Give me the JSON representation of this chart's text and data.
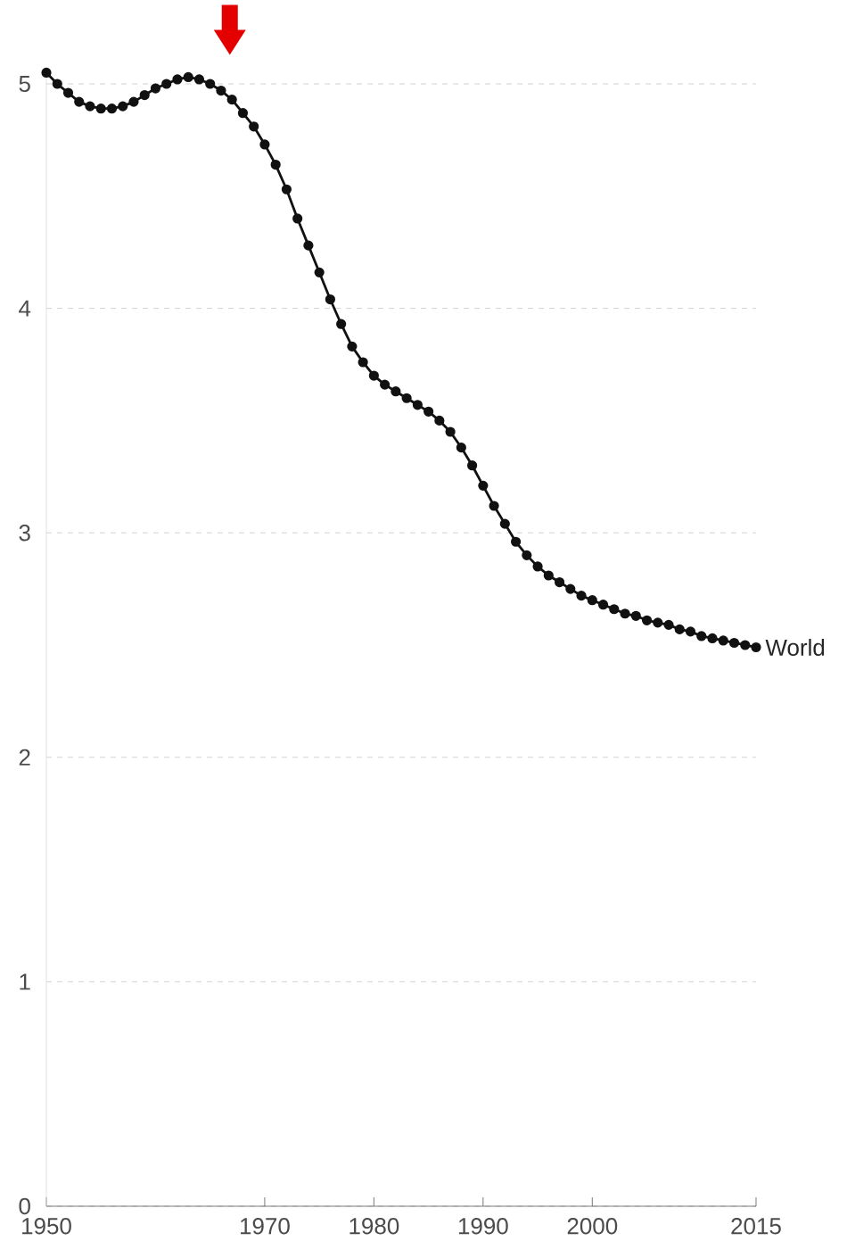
{
  "chart_data": {
    "type": "line",
    "x": [
      1950,
      1951,
      1952,
      1953,
      1954,
      1955,
      1956,
      1957,
      1958,
      1959,
      1960,
      1961,
      1962,
      1963,
      1964,
      1965,
      1966,
      1967,
      1968,
      1969,
      1970,
      1971,
      1972,
      1973,
      1974,
      1975,
      1976,
      1977,
      1978,
      1979,
      1980,
      1981,
      1982,
      1983,
      1984,
      1985,
      1986,
      1987,
      1988,
      1989,
      1990,
      1991,
      1992,
      1993,
      1994,
      1995,
      1996,
      1997,
      1998,
      1999,
      2000,
      2001,
      2002,
      2003,
      2004,
      2005,
      2006,
      2007,
      2008,
      2009,
      2010,
      2011,
      2012,
      2013,
      2014,
      2015
    ],
    "series": [
      {
        "name": "World",
        "color": "#111111",
        "values": [
          5.05,
          5.0,
          4.96,
          4.92,
          4.9,
          4.89,
          4.89,
          4.9,
          4.92,
          4.95,
          4.98,
          5.0,
          5.02,
          5.03,
          5.02,
          5.0,
          4.97,
          4.93,
          4.87,
          4.81,
          4.73,
          4.64,
          4.53,
          4.4,
          4.28,
          4.16,
          4.04,
          3.93,
          3.83,
          3.76,
          3.7,
          3.66,
          3.63,
          3.6,
          3.57,
          3.54,
          3.5,
          3.45,
          3.38,
          3.3,
          3.21,
          3.12,
          3.04,
          2.96,
          2.9,
          2.85,
          2.81,
          2.78,
          2.75,
          2.72,
          2.7,
          2.68,
          2.66,
          2.64,
          2.63,
          2.61,
          2.6,
          2.59,
          2.57,
          2.56,
          2.54,
          2.53,
          2.52,
          2.51,
          2.5,
          2.49
        ]
      }
    ],
    "xlim": [
      1950,
      2015
    ],
    "ylim": [
      0,
      5.05
    ],
    "xticks": [
      1950,
      1970,
      1980,
      1990,
      2000,
      2015
    ],
    "yticks": [
      0,
      1,
      2,
      3,
      4,
      5
    ],
    "grid": "y",
    "marker": "circle",
    "line_style": "solid"
  }
}
